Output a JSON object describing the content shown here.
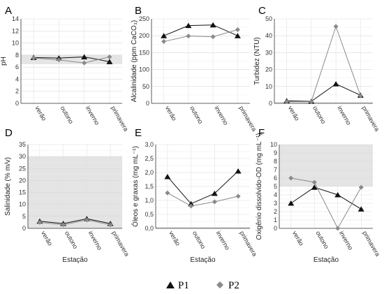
{
  "legend": {
    "items": [
      {
        "name": "P1",
        "color": "#111111",
        "marker": "triangle"
      },
      {
        "name": "P2",
        "color": "#8a8a8a",
        "marker": "diamond"
      }
    ]
  },
  "chart_data": [
    {
      "panel": "A",
      "type": "line",
      "categories": [
        "verão",
        "outono",
        "inverno",
        "primavera"
      ],
      "series": [
        {
          "name": "P1",
          "values": [
            7.6,
            7.5,
            7.7,
            6.9
          ]
        },
        {
          "name": "P2",
          "values": [
            7.5,
            7.2,
            6.7,
            7.7
          ]
        }
      ],
      "ylabel": "pH",
      "xlabel": "",
      "ylim": [
        0,
        14
      ],
      "yticks": [
        "0",
        "2",
        "4",
        "6",
        "8",
        "10",
        "12",
        "14"
      ],
      "band": [
        6.5,
        8.0
      ],
      "grid": true
    },
    {
      "panel": "B",
      "type": "line",
      "categories": [
        "verão",
        "outono",
        "inverno",
        "primavera"
      ],
      "series": [
        {
          "name": "P1",
          "values": [
            200,
            230,
            232,
            200
          ]
        },
        {
          "name": "P2",
          "values": [
            183,
            199,
            197,
            218
          ]
        }
      ],
      "ylabel": "Alcalinidade (ppm CaCO₃)",
      "xlabel": "",
      "ylim": [
        0,
        250
      ],
      "yticks": [
        "0",
        "50",
        "100",
        "150",
        "200",
        "250"
      ],
      "band": null,
      "grid": true
    },
    {
      "panel": "C",
      "type": "line",
      "categories": [
        "verão",
        "outono",
        "inverno",
        "primavera"
      ],
      "series": [
        {
          "name": "P1",
          "values": [
            1.5,
            1.2,
            11.5,
            4.8
          ]
        },
        {
          "name": "P2",
          "values": [
            1.0,
            1.0,
            45.5,
            4.5
          ]
        }
      ],
      "ylabel": "Turbidez (NTU)",
      "xlabel": "",
      "ylim": [
        0,
        50
      ],
      "yticks": [
        "0",
        "10",
        "20",
        "30",
        "40",
        "50"
      ],
      "band": [
        0,
        0.5
      ],
      "grid": true
    },
    {
      "panel": "D",
      "type": "line",
      "categories": [
        "verão",
        "outono",
        "inverno",
        "primavera"
      ],
      "series": [
        {
          "name": "P1",
          "values": [
            3.0,
            2.0,
            4.0,
            2.0
          ]
        },
        {
          "name": "P2",
          "values": [
            2.5,
            1.5,
            3.5,
            1.5
          ]
        }
      ],
      "ylabel": "Salinidade (% m/v)",
      "xlabel": "Estação",
      "ylim": [
        0,
        35
      ],
      "yticks": [
        "0",
        "5",
        "10",
        "15",
        "20",
        "25",
        "30",
        "35"
      ],
      "band": [
        0,
        30
      ],
      "grid": true
    },
    {
      "panel": "E",
      "type": "line",
      "categories": [
        "verão",
        "outono",
        "inverno",
        "primavera"
      ],
      "series": [
        {
          "name": "P1",
          "values": [
            1.85,
            0.88,
            1.25,
            2.05
          ]
        },
        {
          "name": "P2",
          "values": [
            1.27,
            0.8,
            0.95,
            1.15
          ]
        }
      ],
      "ylabel": "Óleos e graxas (mg mL⁻¹)",
      "xlabel": "Estação",
      "ylim": [
        0,
        3.0
      ],
      "yticks": [
        "0,0",
        "0,5",
        "1,0",
        "1,5",
        "2,0",
        "2,5",
        "3,0"
      ],
      "band": [
        0,
        0.04
      ],
      "grid": true
    },
    {
      "panel": "F",
      "type": "line",
      "categories": [
        "verão",
        "outono",
        "inverno",
        "primavera"
      ],
      "series": [
        {
          "name": "P1",
          "values": [
            3.0,
            4.9,
            4.0,
            2.3
          ]
        },
        {
          "name": "P2",
          "values": [
            6.0,
            5.5,
            0.0,
            4.9
          ]
        }
      ],
      "ylabel": "Oxigênio dissolvido-OD (mg mL⁻¹)",
      "xlabel": "Estação",
      "ylim": [
        0,
        10
      ],
      "yticks": [
        "0",
        "1",
        "2",
        "3",
        "4",
        "5",
        "6",
        "7",
        "8",
        "9",
        "10"
      ],
      "band": [
        5,
        10
      ],
      "grid": true
    }
  ]
}
